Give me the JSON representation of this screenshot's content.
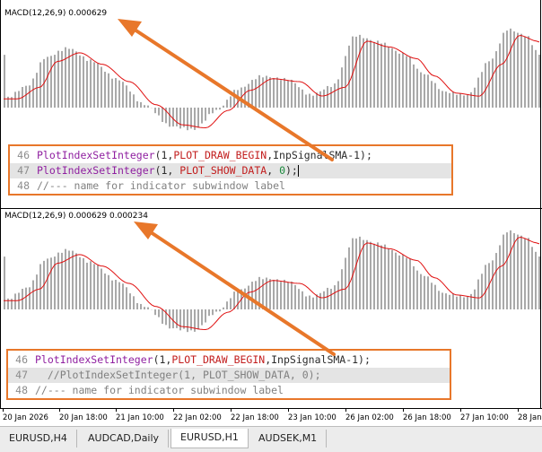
{
  "panes": [
    {
      "indicator_label": "MACD(12,26,9) 0.000629",
      "code_lines": [
        {
          "num": "46",
          "tokens": [
            {
              "t": "fn",
              "s": "PlotIndexSetInteger"
            },
            {
              "t": "pl",
              "s": "(1,"
            },
            {
              "t": "cst",
              "s": "PLOT_DRAW_BEGIN"
            },
            {
              "t": "pl",
              "s": ",InpSignalSMA-1);"
            }
          ],
          "highlight": false
        },
        {
          "num": "47",
          "tokens": [
            {
              "t": "fn",
              "s": "PlotIndexSetInteger"
            },
            {
              "t": "pl",
              "s": "(1, "
            },
            {
              "t": "cst",
              "s": "PLOT_SHOW_DATA"
            },
            {
              "t": "pl",
              "s": ", "
            },
            {
              "t": "num",
              "s": "0"
            },
            {
              "t": "pl",
              "s": ");"
            }
          ],
          "highlight": true,
          "caret": true
        },
        {
          "num": "48",
          "tokens": [
            {
              "t": "cm",
              "s": "//--- name for indicator subwindow label"
            }
          ],
          "highlight": false
        }
      ]
    },
    {
      "indicator_label": "MACD(12,26,9) 0.000629 0.000234",
      "code_lines": [
        {
          "num": "46",
          "tokens": [
            {
              "t": "fn",
              "s": "PlotIndexSetInteger"
            },
            {
              "t": "pl",
              "s": "(1,"
            },
            {
              "t": "cst",
              "s": "PLOT_DRAW_BEGIN"
            },
            {
              "t": "pl",
              "s": ",InpSignalSMA-1);"
            }
          ],
          "highlight": false
        },
        {
          "num": "47",
          "tokens": [
            {
              "t": "cm",
              "s": "//PlotIndexSetInteger(1, PLOT_SHOW_DATA, 0);"
            }
          ],
          "highlight": true,
          "indent": "  "
        },
        {
          "num": "48",
          "tokens": [
            {
              "t": "cm",
              "s": "//--- name for indicator subwindow label"
            }
          ],
          "highlight": false
        }
      ]
    }
  ],
  "time_axis": [
    "20 Jan 2026",
    "20 Jan 18:00",
    "21 Jan 10:00",
    "22 Jan 02:00",
    "22 Jan 18:00",
    "23 Jan 10:00",
    "26 Jan 02:00",
    "26 Jan 18:00",
    "27 Jan 10:00",
    "28 Jan 02:00",
    "28 Jan"
  ],
  "tabs": [
    {
      "label": "EURUSD,H4",
      "active": false
    },
    {
      "label": "AUDCAD,Daily",
      "active": false
    },
    {
      "label": "EURUSD,H1",
      "active": true
    },
    {
      "label": "AUDSEK,M1",
      "active": false
    }
  ],
  "colors": {
    "histogram": "#a9a9a9",
    "signal_line": "#e01010",
    "annotation": "#e8772a"
  }
}
